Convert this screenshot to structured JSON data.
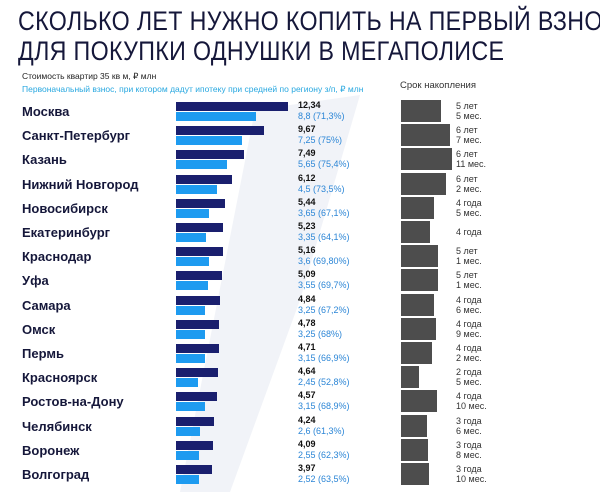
{
  "title_line1": "СКОЛЬКО ЛЕТ НУЖНО КОПИТЬ НА ПЕРВЫЙ ВЗНОС",
  "title_line2": "ДЛЯ ПОКУПКИ ОДНУШКИ В МЕГАПОЛИСЕ",
  "legend_price": "Стоимость квартир 35 кв м, ₽ млн",
  "legend_down": "Первоначальный взнос, при котором дадут ипотеку при средней по региону з/п, ₽ млн",
  "right_header": "Срок накопления",
  "colors": {
    "price_bar": "#1a1f6e",
    "down_bar": "#1e9bf0",
    "period_bar": "#4d4d4d",
    "title": "#15173a"
  },
  "chart_data": {
    "type": "bar",
    "series": [
      {
        "values": [
          12.34,
          9.67,
          7.49,
          6.12,
          5.44,
          5.23,
          5.16,
          5.09,
          4.84,
          4.78,
          4.71,
          4.64,
          4.57,
          4.24,
          4.09,
          3.97
        ]
      },
      {
        "values": [
          8.8,
          7.25,
          5.65,
          4.5,
          3.65,
          3.35,
          3.6,
          3.55,
          3.25,
          3.25,
          3.15,
          2.45,
          3.15,
          2.6,
          2.55,
          2.52
        ]
      }
    ],
    "rows": [
      {
        "city": "Москва",
        "price": "12,34",
        "down": "8,8 (71,3%)",
        "period": "5 лет\n5 мес.",
        "months": 65
      },
      {
        "city": "Санкт-Петербург",
        "price": "9,67",
        "down": "7,25 (75%)",
        "period": "6 лет\n7 мес.",
        "months": 79
      },
      {
        "city": "Казань",
        "price": "7,49",
        "down": "5,65 (75,4%)",
        "period": "6 лет\n11 мес.",
        "months": 83
      },
      {
        "city": "Нижний Новгород",
        "price": "6,12",
        "down": "4,5 (73,5%)",
        "period": "6 лет\n2 мес.",
        "months": 74
      },
      {
        "city": "Новосибирск",
        "price": "5,44",
        "down": "3,65 (67,1%)",
        "period": "4 года\n5 мес.",
        "months": 53
      },
      {
        "city": "Екатеринбург",
        "price": "5,23",
        "down": "3,35 (64,1%)",
        "period": "4 года",
        "months": 48
      },
      {
        "city": "Краснодар",
        "price": "5,16",
        "down": "3,6 (69,80%)",
        "period": "5 лет\n1 мес.",
        "months": 61
      },
      {
        "city": "Уфа",
        "price": "5,09",
        "down": "3,55 (69,7%)",
        "period": "5 лет\n1 мес.",
        "months": 61
      },
      {
        "city": "Самара",
        "price": "4,84",
        "down": "3,25 (67,2%)",
        "period": "4 года\n6 мес.",
        "months": 54
      },
      {
        "city": "Омск",
        "price": "4,78",
        "down": "3,25 (68%)",
        "period": "4 года\n9 мес.",
        "months": 57
      },
      {
        "city": "Пермь",
        "price": "4,71",
        "down": "3,15 (66,9%)",
        "period": "4 года\n2 мес.",
        "months": 50
      },
      {
        "city": "Красноярск",
        "price": "4,64",
        "down": "2,45 (52,8%)",
        "period": "2 года\n5 мес.",
        "months": 29
      },
      {
        "city": "Ростов-на-Дону",
        "price": "4,57",
        "down": "3,15 (68,9%)",
        "period": "4 года\n10 мес.",
        "months": 58
      },
      {
        "city": "Челябинск",
        "price": "4,24",
        "down": "2,6 (61,3%)",
        "period": "3 года\n6 мес.",
        "months": 42
      },
      {
        "city": "Воронеж",
        "price": "4,09",
        "down": "2,55 (62,3%)",
        "period": "3 года\n8 мес.",
        "months": 44
      },
      {
        "city": "Волгоград",
        "price": "3,97",
        "down": "2,52 (63,5%)",
        "period": "3 года\n10 мес.",
        "months": 46
      }
    ]
  }
}
